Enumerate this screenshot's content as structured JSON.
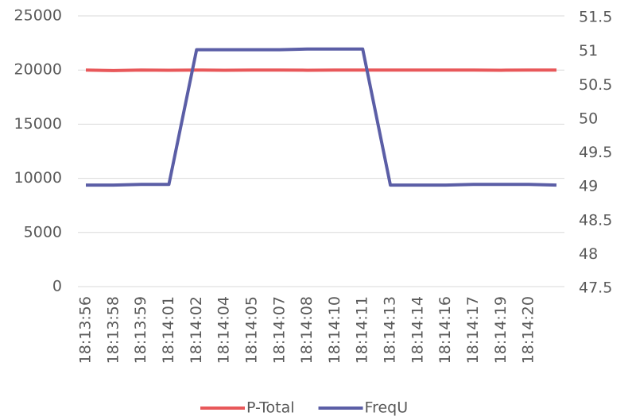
{
  "chart_data": {
    "type": "line",
    "categories": [
      "18:13:56",
      "18:13:58",
      "18:13:59",
      "18:14:01",
      "18:14:02",
      "18:14:04",
      "18:14:05",
      "18:14:07",
      "18:14:08",
      "18:14:10",
      "18:14:11",
      "18:14:13",
      "18:14:14",
      "18:14:16",
      "18:14:17",
      "18:14:19",
      "18:14:20",
      null
    ],
    "series": [
      {
        "name": "P-Total",
        "color": "#e8585a",
        "values": [
          20000,
          19950,
          20000,
          19980,
          20000,
          19980,
          20000,
          20000,
          19980,
          20000,
          20000,
          20000,
          20000,
          20000,
          20000,
          19980,
          20000,
          20000
        ]
      },
      {
        "name": "FreqU",
        "color": "#5b5ea6",
        "axis": "y2",
        "values": [
          49.0,
          49.0,
          49.01,
          49.01,
          51.0,
          51.0,
          51.0,
          51.0,
          51.01,
          51.01,
          51.01,
          49.0,
          49.0,
          49.0,
          49.01,
          49.01,
          49.01,
          49.0
        ]
      }
    ],
    "ylim": [
      0,
      25000
    ],
    "yticks": [
      0,
      5000,
      10000,
      15000,
      20000,
      25000
    ],
    "y2lim": [
      47.5,
      51.5
    ],
    "y2ticks": [
      47.5,
      48,
      48.5,
      49,
      49.5,
      50,
      50.5,
      51,
      51.5
    ],
    "grid": true,
    "legend": "bottom"
  }
}
